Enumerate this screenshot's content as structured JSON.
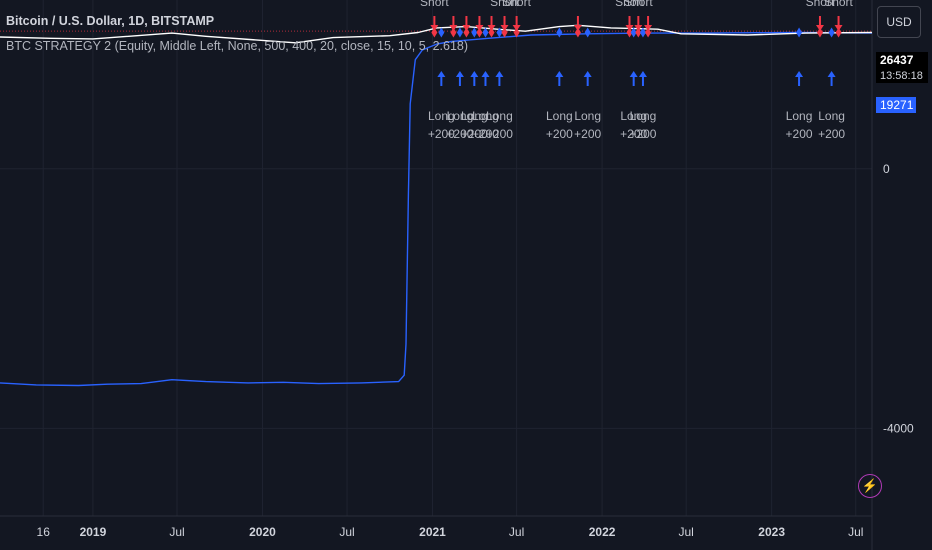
{
  "legend": {
    "title": "Bitcoin / U.S. Dollar, 1D, BITSTAMP",
    "strategy": "BTC STRATEGY 2 (Equity, Middle Left, None, 500, 400, 20, close, 15, 10, 5, 2.618)"
  },
  "toolbar": {
    "currency": "USD"
  },
  "price_tags": {
    "last_price": "26437",
    "countdown": "13:58:18",
    "equity": "19271"
  },
  "colors": {
    "background": "#131722",
    "price_line": "#ffffff",
    "equity_line": "#2962ff",
    "long_signal": "#2962ff",
    "short_signal": "#f23645",
    "grid": "#1f2330",
    "text": "#d1d4dc"
  },
  "icons": {
    "alert": "lightning-icon"
  },
  "chart_data": {
    "type": "line",
    "title": "Bitcoin / U.S. Dollar, 1D, BITSTAMP",
    "x_tick_labels": [
      "16",
      "2019",
      "Jul",
      "2020",
      "Jul",
      "2021",
      "Jul",
      "2022",
      "Jul",
      "2023",
      "Jul"
    ],
    "x_tick_dates": [
      "2018-09-16",
      "2019-01-01",
      "2019-07-01",
      "2020-01-01",
      "2020-07-01",
      "2021-01-01",
      "2021-07-01",
      "2022-01-01",
      "2022-07-01",
      "2023-01-01",
      "2023-07-01"
    ],
    "x_range": [
      "2018-06-15",
      "2023-08-05"
    ],
    "y_tick_labels": [
      "0",
      "-4000"
    ],
    "y_ticks": [
      0,
      -4000
    ],
    "y_range": [
      -5350,
      2600
    ],
    "grid": true,
    "series": [
      {
        "points": [
          [
            "2018-06-15",
            -3300
          ],
          [
            "2018-09-01",
            -3330
          ],
          [
            "2018-12-01",
            -3340
          ],
          [
            "2019-02-01",
            -3320
          ],
          [
            "2019-04-15",
            -3310
          ],
          [
            "2019-06-20",
            -3250
          ],
          [
            "2019-09-01",
            -3280
          ],
          [
            "2019-12-01",
            -3300
          ],
          [
            "2020-02-15",
            -3290
          ],
          [
            "2020-05-01",
            -3310
          ],
          [
            "2020-08-01",
            -3300
          ],
          [
            "2020-10-20",
            -3280
          ],
          [
            "2020-11-01",
            -3180
          ],
          [
            "2020-11-05",
            -2700
          ],
          [
            "2020-11-10",
            -400
          ],
          [
            "2020-11-14",
            1000
          ],
          [
            "2020-11-25",
            1680
          ],
          [
            "2020-12-10",
            1830
          ],
          [
            "2021-01-10",
            1920
          ],
          [
            "2021-02-10",
            1960
          ],
          [
            "2021-03-15",
            1980
          ],
          [
            "2021-05-01",
            2010
          ],
          [
            "2021-08-01",
            2060
          ],
          [
            "2021-12-01",
            2080
          ],
          [
            "2022-04-01",
            2090
          ],
          [
            "2022-08-01",
            2090
          ],
          [
            "2023-03-01",
            2100
          ],
          [
            "2023-08-05",
            2090
          ]
        ]
      },
      {
        "points": [
          [
            "2018-06-15",
            2030
          ],
          [
            "2018-10-01",
            2010
          ],
          [
            "2019-01-01",
            2000
          ],
          [
            "2019-06-20",
            2090
          ],
          [
            "2019-09-01",
            2040
          ],
          [
            "2020-03-12",
            1940
          ],
          [
            "2020-06-01",
            2020
          ],
          [
            "2020-10-01",
            2050
          ],
          [
            "2020-12-01",
            2100
          ],
          [
            "2021-01-10",
            2170
          ],
          [
            "2021-03-15",
            2190
          ],
          [
            "2021-05-20",
            2150
          ],
          [
            "2021-07-20",
            2120
          ],
          [
            "2021-10-01",
            2190
          ],
          [
            "2021-11-10",
            2210
          ],
          [
            "2022-01-20",
            2170
          ],
          [
            "2022-05-01",
            2150
          ],
          [
            "2022-06-20",
            2080
          ],
          [
            "2022-11-10",
            2060
          ],
          [
            "2023-03-15",
            2090
          ],
          [
            "2023-08-05",
            2100
          ]
        ]
      }
    ],
    "signals": [
      {
        "date": "2021-01-05",
        "side": "short",
        "label": "Short"
      },
      {
        "date": "2021-01-20",
        "side": "long",
        "label": "Long +200"
      },
      {
        "date": "2021-02-15",
        "side": "short",
        "label": ""
      },
      {
        "date": "2021-03-01",
        "side": "long",
        "label": "Long +200"
      },
      {
        "date": "2021-03-15",
        "side": "short",
        "label": ""
      },
      {
        "date": "2021-04-01",
        "side": "long",
        "label": "Long +200"
      },
      {
        "date": "2021-04-12",
        "side": "short",
        "label": ""
      },
      {
        "date": "2021-04-25",
        "side": "long",
        "label": "Long +200"
      },
      {
        "date": "2021-05-08",
        "side": "short",
        "label": ""
      },
      {
        "date": "2021-05-25",
        "side": "long",
        "label": "Long +200"
      },
      {
        "date": "2021-06-05",
        "side": "short",
        "label": "Short"
      },
      {
        "date": "2021-07-01",
        "side": "short",
        "label": "Short"
      },
      {
        "date": "2021-10-01",
        "side": "long",
        "label": "Long +200"
      },
      {
        "date": "2021-11-10",
        "side": "short",
        "label": ""
      },
      {
        "date": "2021-12-01",
        "side": "long",
        "label": "Long +200"
      },
      {
        "date": "2022-03-01",
        "side": "short",
        "label": "Short"
      },
      {
        "date": "2022-03-10",
        "side": "long",
        "label": "Long +200"
      },
      {
        "date": "2022-03-20",
        "side": "short",
        "label": "Short"
      },
      {
        "date": "2022-03-30",
        "side": "long",
        "label": "Long +200"
      },
      {
        "date": "2022-04-10",
        "side": "short",
        "label": ""
      },
      {
        "date": "2023-03-01",
        "side": "long",
        "label": "Long +200"
      },
      {
        "date": "2023-04-15",
        "side": "short",
        "label": "Short"
      },
      {
        "date": "2023-05-10",
        "side": "long",
        "label": "Long +200"
      },
      {
        "date": "2023-05-25",
        "side": "short",
        "label": "Short"
      }
    ]
  }
}
